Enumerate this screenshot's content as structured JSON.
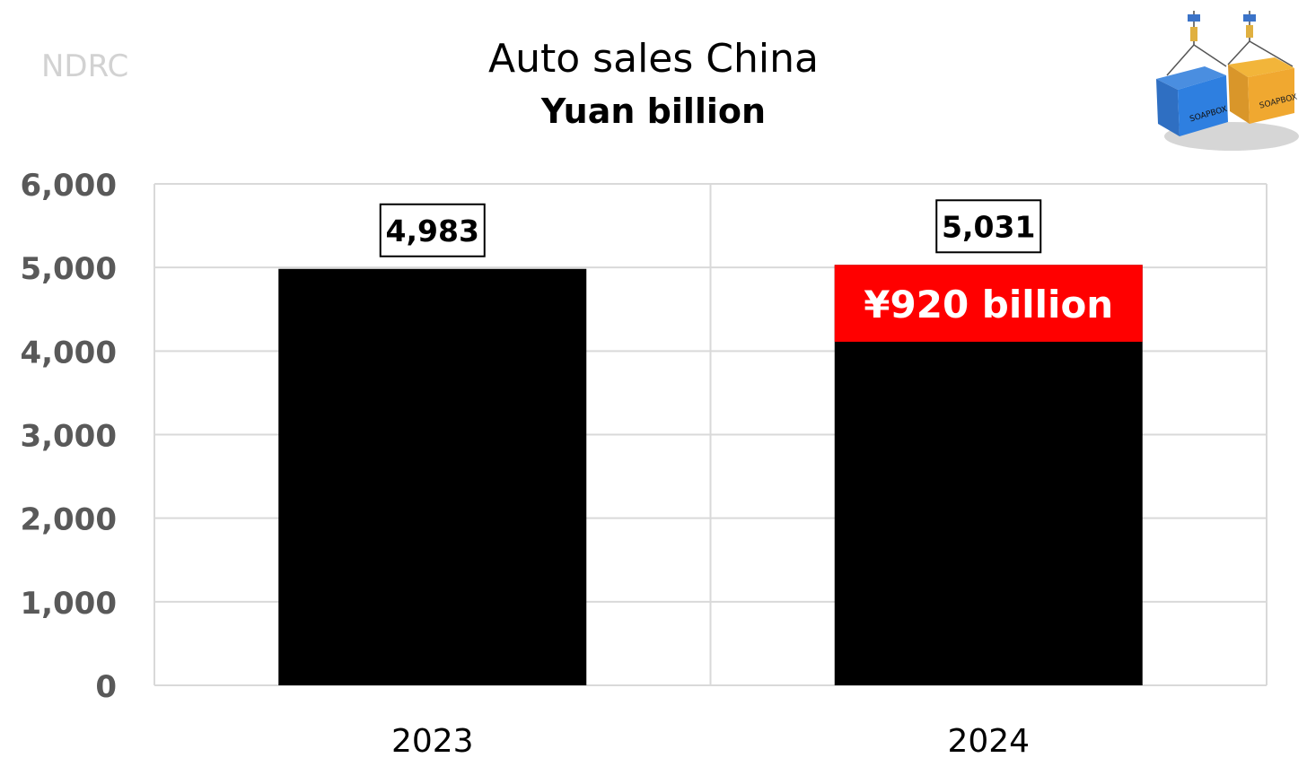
{
  "source_label": "NDRC",
  "chart_data": {
    "type": "bar",
    "title": "Auto sales China",
    "subtitle": "Yuan billion",
    "xlabel": "",
    "ylabel": "",
    "categories": [
      "2023",
      "2024"
    ],
    "values": [
      4983,
      5031
    ],
    "value_labels": [
      "4,983",
      "5,031"
    ],
    "ylim": [
      0,
      6000
    ],
    "yticks": [
      0,
      1000,
      2000,
      3000,
      4000,
      5000,
      6000
    ],
    "ytick_labels": [
      "0",
      "1,000",
      "2,000",
      "3,000",
      "4,000",
      "5,000",
      "6,000"
    ],
    "grid": true,
    "highlight": {
      "category": "2024",
      "value": 920,
      "label": "¥920 billion",
      "color": "#ff0000"
    },
    "bar_color": "#000000"
  },
  "logo": {
    "icon": "shipping-containers-soapbox-icon",
    "text": "SOAPBOX"
  }
}
